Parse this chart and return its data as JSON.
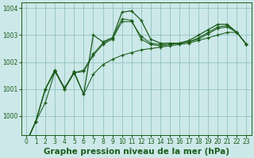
{
  "bg_color": "#cce8e8",
  "grid_color": "#88bbbb",
  "line_color": "#1a5c1a",
  "title": "Graphe pression niveau de la mer (hPa)",
  "title_fontsize": 7.5,
  "xlim": [
    -0.5,
    23.5
  ],
  "ylim": [
    999.3,
    1004.2
  ],
  "yticks": [
    1000,
    1001,
    1002,
    1003,
    1004
  ],
  "xticks": [
    0,
    1,
    2,
    3,
    4,
    5,
    6,
    7,
    8,
    9,
    10,
    11,
    12,
    13,
    14,
    15,
    16,
    17,
    18,
    19,
    20,
    21,
    22,
    23
  ],
  "s1": [
    999.0,
    999.8,
    1000.5,
    1001.65,
    1001.0,
    1001.65,
    1000.8,
    1001.55,
    1001.9,
    1002.1,
    1002.25,
    1002.35,
    1002.45,
    1002.5,
    1002.55,
    1002.6,
    1002.65,
    1002.7,
    1002.8,
    1002.9,
    1003.0,
    1003.1,
    1003.1,
    1002.65
  ],
  "s2": [
    999.0,
    999.8,
    1001.0,
    1001.65,
    1001.05,
    1001.6,
    1001.65,
    1002.25,
    1002.65,
    1002.85,
    1003.5,
    1003.5,
    1002.95,
    1002.7,
    1002.65,
    1002.65,
    1002.7,
    1002.75,
    1002.85,
    1003.05,
    1003.25,
    1003.3,
    1003.1,
    1002.65
  ],
  "s3": [
    999.0,
    999.8,
    1001.0,
    1001.7,
    1001.0,
    1001.6,
    1001.7,
    1002.3,
    1002.7,
    1002.9,
    1003.6,
    1003.55,
    1002.85,
    1002.65,
    1002.6,
    1002.65,
    1002.7,
    1002.75,
    1002.9,
    1003.1,
    1003.3,
    1003.35,
    1003.1,
    1002.65
  ],
  "s4": [
    999.0,
    999.8,
    1001.0,
    1001.7,
    1001.0,
    1001.6,
    1000.8,
    1003.0,
    1002.75,
    1002.9,
    1003.85,
    1003.9,
    1003.55,
    1002.85,
    1002.7,
    1002.7,
    1002.7,
    1002.8,
    1003.0,
    1003.2,
    1003.4,
    1003.4,
    1003.1,
    1002.65
  ]
}
